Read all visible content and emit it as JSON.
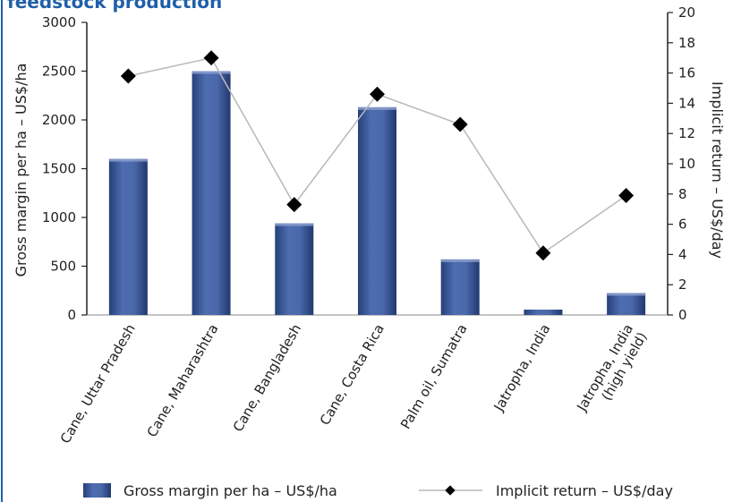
{
  "page_title": "feedstock production",
  "chart_data": {
    "type": "bar",
    "categories": [
      [
        "Cane, Uttar Pradesh"
      ],
      [
        "Cane, Maharashtra"
      ],
      [
        "Cane, Bangladesh"
      ],
      [
        "Cane, Costa Rica"
      ],
      [
        "Palm oil, Sumatra"
      ],
      [
        "Jatropha, India"
      ],
      [
        "Jatropha, India",
        "(high yield)"
      ]
    ],
    "ylabel": "Gross margin per ha – US$/ha",
    "y2label": "Implicit return – US$/day",
    "ylim": [
      0,
      3000
    ],
    "yticks": [
      0,
      500,
      1000,
      1500,
      2000,
      2500,
      3000
    ],
    "y2lim": [
      0,
      20
    ],
    "y2ticks": [
      0,
      2,
      4,
      6,
      8,
      10,
      12,
      14,
      16,
      18,
      20
    ],
    "grid": false,
    "legend_position": "bottom",
    "series": [
      {
        "name": "Gross margin per ha – US$/ha",
        "type": "bar",
        "axis": "left",
        "color": "#3d5a99",
        "values": [
          1600,
          2500,
          940,
          2130,
          570,
          55,
          225
        ]
      },
      {
        "name": "Implicit return – US$/day",
        "type": "line",
        "axis": "right",
        "color": "#b8b8b8",
        "marker_color": "#000000",
        "values": [
          15.8,
          17.0,
          7.3,
          14.6,
          12.6,
          4.1,
          7.9
        ]
      }
    ]
  }
}
